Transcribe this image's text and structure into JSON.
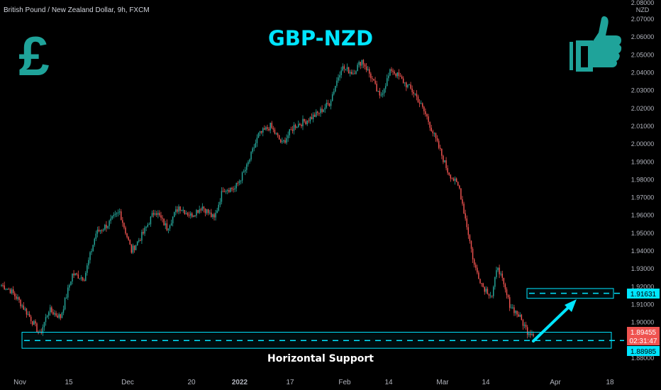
{
  "header": {
    "symbol_info": "British Pound / New Zealand Dollar, 9h, FXCM",
    "title": "GBP-NZD"
  },
  "icons": {
    "left": "pound-sign-icon",
    "right": "thumbs-up-icon",
    "left_glyph": "£"
  },
  "colors": {
    "background": "#000000",
    "up": "#26a69a",
    "down": "#ef5350",
    "accent": "#00e5ff",
    "icon": "#1fa39a",
    "current_price_bg": "#ef5350"
  },
  "annotations": {
    "support_label": "Horizontal Support",
    "support_level": 1.88985,
    "support_zone": [
      1.8855,
      1.8945
    ],
    "target_level": 1.91631,
    "target_zone": [
      1.9135,
      1.919
    ]
  },
  "price_labels": {
    "target": "1.91631",
    "current": "1.89455",
    "countdown": "02:31:47",
    "support": "1.88985"
  },
  "chart_data": {
    "type": "candlestick",
    "title": "GBP-NZD",
    "currency": "NZD",
    "y_top_label": "2.08000",
    "ylim": [
      1.877,
      2.0805
    ],
    "y_ticks": [
      "2.07000",
      "2.06000",
      "2.05000",
      "2.04000",
      "2.03000",
      "2.02000",
      "2.01000",
      "2.00000",
      "1.99000",
      "1.98000",
      "1.97000",
      "1.96000",
      "1.95000",
      "1.94000",
      "1.93000",
      "1.92000",
      "1.91000",
      "1.90000",
      "1.88000"
    ],
    "y_tick_values": [
      2.07,
      2.06,
      2.05,
      2.04,
      2.03,
      2.02,
      2.01,
      2.0,
      1.99,
      1.98,
      1.97,
      1.96,
      1.95,
      1.94,
      1.93,
      1.92,
      1.91,
      1.9,
      1.88
    ],
    "x_ticks": [
      "Nov",
      "15",
      "Dec",
      "20",
      "2022",
      "17",
      "Feb",
      "14",
      "Mar",
      "14",
      "Apr",
      "18"
    ],
    "x_tick_bold": [
      false,
      false,
      false,
      false,
      true,
      false,
      false,
      false,
      false,
      false,
      false,
      false
    ],
    "anchors": [
      [
        0,
        1.921
      ],
      [
        6,
        1.918
      ],
      [
        12,
        1.912
      ],
      [
        20,
        1.902
      ],
      [
        26,
        1.893
      ],
      [
        32,
        1.907
      ],
      [
        40,
        1.903
      ],
      [
        48,
        1.927
      ],
      [
        56,
        1.925
      ],
      [
        64,
        1.95
      ],
      [
        72,
        1.955
      ],
      [
        80,
        1.962
      ],
      [
        88,
        1.94
      ],
      [
        96,
        1.95
      ],
      [
        104,
        1.963
      ],
      [
        112,
        1.953
      ],
      [
        120,
        1.965
      ],
      [
        128,
        1.96
      ],
      [
        136,
        1.965
      ],
      [
        144,
        1.958
      ],
      [
        150,
        1.975
      ],
      [
        158,
        1.975
      ],
      [
        166,
        1.987
      ],
      [
        174,
        2.005
      ],
      [
        182,
        2.01
      ],
      [
        190,
        2.0
      ],
      [
        198,
        2.01
      ],
      [
        206,
        2.013
      ],
      [
        214,
        2.017
      ],
      [
        222,
        2.023
      ],
      [
        230,
        2.043
      ],
      [
        238,
        2.04
      ],
      [
        244,
        2.047
      ],
      [
        250,
        2.038
      ],
      [
        256,
        2.026
      ],
      [
        264,
        2.042
      ],
      [
        272,
        2.035
      ],
      [
        280,
        2.028
      ],
      [
        288,
        2.015
      ],
      [
        296,
        1.998
      ],
      [
        302,
        1.985
      ],
      [
        310,
        1.975
      ],
      [
        316,
        1.95
      ],
      [
        320,
        1.932
      ],
      [
        326,
        1.92
      ],
      [
        332,
        1.915
      ],
      [
        336,
        1.932
      ],
      [
        340,
        1.92
      ],
      [
        344,
        1.91
      ],
      [
        350,
        1.904
      ],
      [
        356,
        1.895
      ],
      [
        360,
        1.894
      ]
    ]
  }
}
